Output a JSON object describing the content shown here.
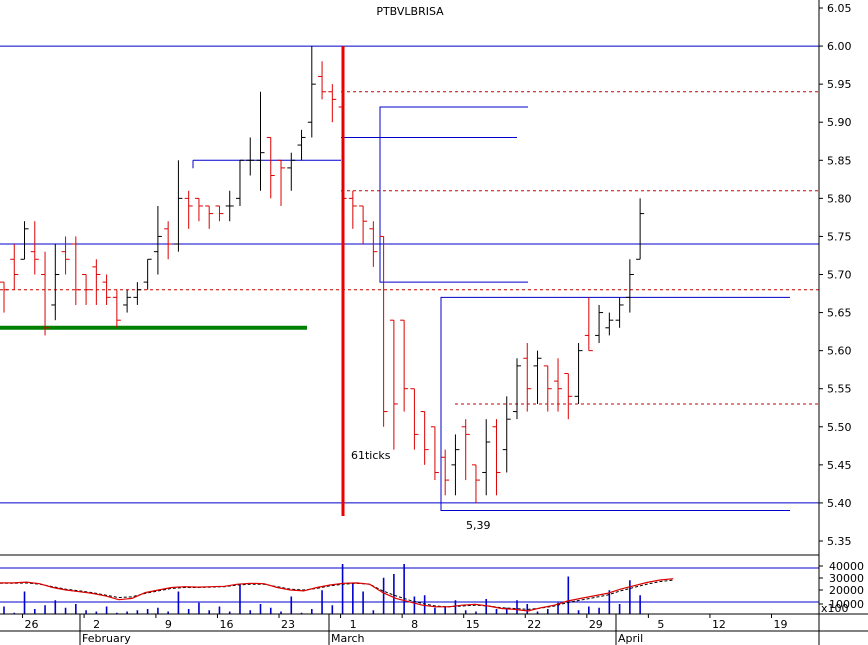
{
  "chart_data": {
    "type": "ohlc",
    "title": "PTBVLBRISA",
    "price_axis": {
      "min": 5.35,
      "max": 6.05,
      "ticks": [
        6.05,
        6.0,
        5.95,
        5.9,
        5.85,
        5.8,
        5.75,
        5.7,
        5.65,
        5.6,
        5.55,
        5.5,
        5.45,
        5.4,
        5.35
      ]
    },
    "volume_axis": {
      "ticks": [
        "40000",
        "30000",
        "20000",
        "10000"
      ],
      "unit_label": "x100"
    },
    "x_day_ticks": [
      "26",
      "2",
      "9",
      "16",
      "23",
      "1",
      "8",
      "15",
      "22",
      "29",
      "5",
      "12",
      "19"
    ],
    "x_month_labels": [
      "February",
      "March",
      "April"
    ],
    "annotations": {
      "ticks_label": "61ticks",
      "low_label": "5,39"
    },
    "levels": {
      "blue_solid": [
        6.0,
        5.74,
        5.4
      ],
      "red_dashed": [
        5.94,
        5.81,
        5.68,
        5.53
      ],
      "green": 5.63,
      "boxes": [
        {
          "top": 5.67,
          "bottom": 5.39,
          "x_start": 40,
          "x_end": 66
        },
        {
          "top": 5.92,
          "bottom": 5.69,
          "x_start": 30,
          "x_end": 44,
          "mid": 5.88
        }
      ],
      "bracket_585": {
        "value": 5.85,
        "x_start": 16,
        "x_end": 28
      }
    },
    "bars": [
      [
        5.69,
        5.69,
        5.65,
        5.68
      ],
      [
        5.72,
        5.74,
        5.68,
        5.7
      ],
      [
        5.72,
        5.77,
        5.72,
        5.76
      ],
      [
        5.73,
        5.77,
        5.7,
        5.72
      ],
      [
        5.7,
        5.73,
        5.62,
        5.63
      ],
      [
        5.66,
        5.74,
        5.64,
        5.7
      ],
      [
        5.73,
        5.75,
        5.7,
        5.72
      ],
      [
        5.74,
        5.75,
        5.66,
        5.68
      ],
      [
        5.7,
        5.7,
        5.66,
        5.68
      ],
      [
        5.71,
        5.72,
        5.66,
        5.7
      ],
      [
        5.69,
        5.7,
        5.66,
        5.67
      ],
      [
        5.67,
        5.68,
        5.63,
        5.64
      ],
      [
        5.66,
        5.68,
        5.65,
        5.67
      ],
      [
        5.67,
        5.69,
        5.66,
        5.68
      ],
      [
        5.69,
        5.72,
        5.68,
        5.72
      ],
      [
        5.73,
        5.79,
        5.7,
        5.75
      ],
      [
        5.76,
        5.77,
        5.72,
        5.74
      ],
      [
        5.74,
        5.85,
        5.73,
        5.8
      ],
      [
        5.8,
        5.81,
        5.76,
        5.79
      ],
      [
        5.8,
        5.8,
        5.77,
        5.79
      ],
      [
        5.79,
        5.79,
        5.76,
        5.78
      ],
      [
        5.79,
        5.79,
        5.77,
        5.78
      ],
      [
        5.79,
        5.81,
        5.77,
        5.79
      ],
      [
        5.8,
        5.85,
        5.79,
        5.85
      ],
      [
        5.85,
        5.88,
        5.83,
        5.85
      ],
      [
        5.85,
        5.94,
        5.81,
        5.86
      ],
      [
        5.88,
        5.88,
        5.8,
        5.83
      ],
      [
        5.85,
        5.85,
        5.79,
        5.84
      ],
      [
        5.84,
        5.86,
        5.81,
        5.85
      ],
      [
        5.87,
        5.89,
        5.85,
        5.88
      ],
      [
        5.9,
        6.0,
        5.88,
        5.95
      ],
      [
        5.96,
        5.98,
        5.93,
        5.94
      ],
      [
        5.94,
        5.95,
        5.9,
        5.93
      ],
      [
        5.92,
        5.92,
        5.78,
        5.8
      ],
      [
        5.8,
        5.81,
        5.76,
        5.79
      ],
      [
        5.79,
        5.79,
        5.74,
        5.77
      ],
      [
        5.76,
        5.77,
        5.71,
        5.73
      ],
      [
        5.75,
        5.75,
        5.5,
        5.52
      ],
      [
        5.64,
        5.64,
        5.47,
        5.53
      ],
      [
        5.64,
        5.64,
        5.52,
        5.55
      ],
      [
        5.55,
        5.55,
        5.47,
        5.49
      ],
      [
        5.52,
        5.52,
        5.45,
        5.47
      ],
      [
        5.5,
        5.5,
        5.43,
        5.44
      ],
      [
        5.46,
        5.47,
        5.41,
        5.43
      ],
      [
        5.45,
        5.49,
        5.41,
        5.47
      ],
      [
        5.5,
        5.51,
        5.43,
        5.49
      ],
      [
        5.45,
        5.45,
        5.4,
        5.43
      ],
      [
        5.44,
        5.51,
        5.41,
        5.48
      ],
      [
        5.5,
        5.51,
        5.41,
        5.44
      ],
      [
        5.47,
        5.54,
        5.44,
        5.51
      ],
      [
        5.52,
        5.59,
        5.51,
        5.58
      ],
      [
        5.59,
        5.61,
        5.52,
        5.55
      ],
      [
        5.58,
        5.6,
        5.53,
        5.59
      ],
      [
        5.58,
        5.58,
        5.52,
        5.55
      ],
      [
        5.56,
        5.59,
        5.52,
        5.55
      ],
      [
        5.57,
        5.57,
        5.51,
        5.54
      ],
      [
        5.54,
        5.61,
        5.53,
        5.6
      ],
      [
        5.62,
        5.67,
        5.6,
        5.6
      ],
      [
        5.62,
        5.66,
        5.61,
        5.65
      ],
      [
        5.63,
        5.65,
        5.62,
        5.64
      ],
      [
        5.64,
        5.67,
        5.63,
        5.66
      ],
      [
        5.67,
        5.72,
        5.65,
        5.7
      ],
      [
        5.72,
        5.8,
        5.72,
        5.78
      ]
    ],
    "volume": [
      6,
      1,
      18,
      4,
      7,
      11,
      5,
      8,
      3,
      2,
      6,
      1,
      2,
      3,
      4,
      5,
      2,
      18,
      4,
      9,
      3,
      6,
      2,
      24,
      3,
      8,
      5,
      2,
      14,
      1,
      4,
      19,
      7,
      40,
      25,
      18,
      3,
      29,
      32,
      40,
      14,
      15,
      5,
      6,
      11,
      3,
      2,
      12,
      4,
      5,
      11,
      8,
      2,
      4,
      9,
      30,
      3,
      6,
      5,
      19,
      8,
      27,
      15
    ],
    "oscillator_red": [
      5,
      5,
      7,
      3,
      -6,
      -12,
      -16,
      -20,
      -26,
      -35,
      -32,
      -18,
      -12,
      -6,
      -4,
      -5,
      -4,
      -3,
      2,
      4,
      3,
      -6,
      -12,
      -14,
      -6,
      0,
      4,
      5,
      2,
      -18,
      -32,
      -40,
      -48,
      -52,
      -52,
      -48,
      -46,
      -50,
      -56,
      -58,
      -62,
      -54,
      -48,
      -38,
      -32,
      -26,
      -20,
      -10,
      -2,
      6,
      12,
      15
    ],
    "oscillator_black": [
      4,
      4,
      5,
      2,
      -4,
      -10,
      -14,
      -18,
      -24,
      -30,
      -28,
      -20,
      -14,
      -8,
      -6,
      -6,
      -5,
      -4,
      0,
      2,
      2,
      -4,
      -10,
      -12,
      -8,
      -2,
      2,
      4,
      2,
      -14,
      -26,
      -36,
      -44,
      -50,
      -52,
      -50,
      -48,
      -50,
      -54,
      -56,
      -58,
      -55,
      -50,
      -42,
      -36,
      -30,
      -24,
      -14,
      -6,
      2,
      8,
      12
    ]
  }
}
